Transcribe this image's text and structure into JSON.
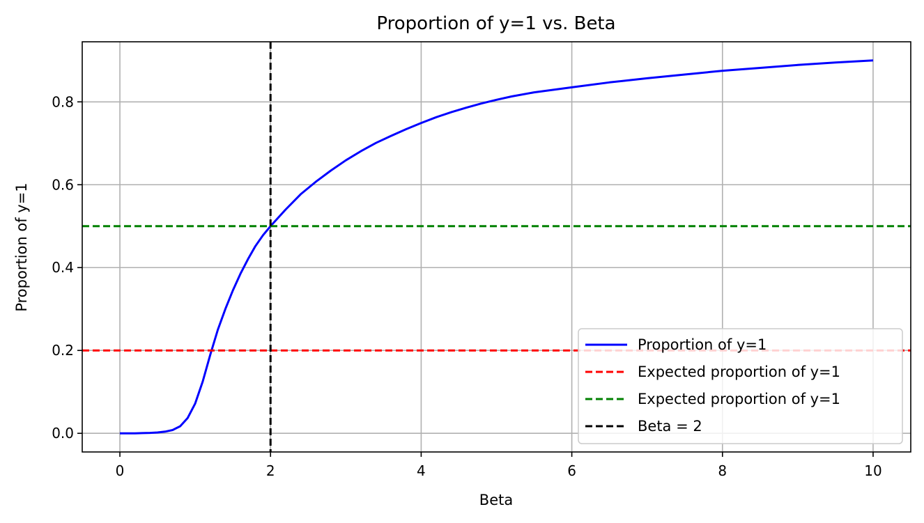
{
  "chart_data": {
    "type": "line",
    "title": "Proportion of y=1 vs. Beta",
    "xlabel": "Beta",
    "ylabel": "Proportion of y=1",
    "xlim": [
      -0.5,
      10.5
    ],
    "ylim": [
      -0.045,
      0.945
    ],
    "xticks": [
      0,
      2,
      4,
      6,
      8,
      10
    ],
    "xtick_labels": [
      "0",
      "2",
      "4",
      "6",
      "8",
      "10"
    ],
    "yticks": [
      0.0,
      0.2,
      0.4,
      0.6,
      0.8
    ],
    "ytick_labels": [
      "0.0",
      "0.2",
      "0.4",
      "0.6",
      "0.8"
    ],
    "grid": true,
    "legend_position": "lower right",
    "series": [
      {
        "name": "Proportion of y=1",
        "color": "#0000ff",
        "style": "solid",
        "x": [
          0,
          0.1,
          0.2,
          0.3,
          0.4,
          0.5,
          0.6,
          0.7,
          0.8,
          0.9,
          1.0,
          1.1,
          1.2,
          1.3,
          1.4,
          1.5,
          1.6,
          1.7,
          1.8,
          1.9,
          2.0,
          2.2,
          2.4,
          2.6,
          2.8,
          3.0,
          3.2,
          3.4,
          3.6,
          3.8,
          4.0,
          4.2,
          4.4,
          4.6,
          4.8,
          5.0,
          5.2,
          5.5,
          6.0,
          6.5,
          7.0,
          7.5,
          8.0,
          8.5,
          9.0,
          9.5,
          10.0
        ],
        "y": [
          0.0,
          0.0,
          0.0,
          0.0005,
          0.001,
          0.002,
          0.004,
          0.008,
          0.017,
          0.037,
          0.072,
          0.125,
          0.19,
          0.25,
          0.3,
          0.345,
          0.385,
          0.42,
          0.452,
          0.478,
          0.5,
          0.54,
          0.577,
          0.607,
          0.634,
          0.659,
          0.681,
          0.701,
          0.718,
          0.734,
          0.749,
          0.763,
          0.775,
          0.786,
          0.796,
          0.805,
          0.813,
          0.823,
          0.835,
          0.847,
          0.857,
          0.866,
          0.875,
          0.882,
          0.889,
          0.895,
          0.9
        ]
      },
      {
        "name": "Expected proportion of y=1",
        "color": "#ff0000",
        "style": "dashed",
        "hline": 0.2
      },
      {
        "name": "Expected proportion of y=1",
        "color": "#008000",
        "style": "dashed",
        "hline": 0.5
      },
      {
        "name": "Beta = 2",
        "color": "#000000",
        "style": "dashed",
        "vline": 2
      }
    ]
  }
}
